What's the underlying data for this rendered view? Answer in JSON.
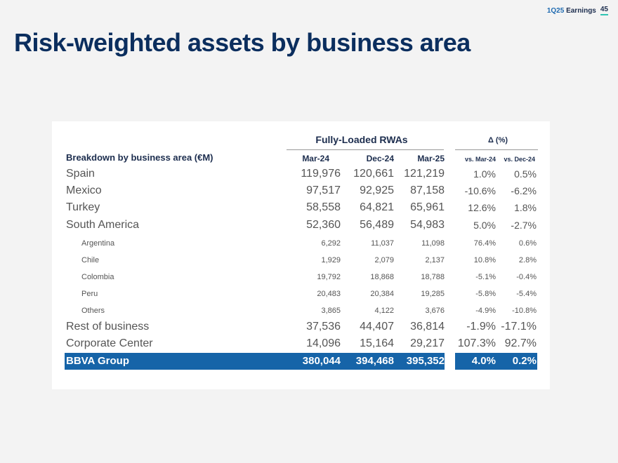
{
  "header": {
    "earnings_prefix": "1Q25",
    "earnings_label": "Earnings",
    "page_number": "45"
  },
  "title": {
    "bold": "Risk-weighted assets",
    "rest": " by business area"
  },
  "table": {
    "group_rwa": "Fully-Loaded RWAs",
    "group_delta": "Δ (%)",
    "row_header": "Breakdown by business area (€M)",
    "columns": [
      "Mar-24",
      "Dec-24",
      "Mar-25"
    ],
    "delta_columns": [
      "vs. Mar-24",
      "vs. Dec-24"
    ],
    "rows": [
      {
        "label": "Spain",
        "values": [
          "119,976",
          "120,661",
          "121,219"
        ],
        "deltas": [
          "1.0%",
          "0.5%"
        ]
      },
      {
        "label": "Mexico",
        "values": [
          "97,517",
          "92,925",
          "87,158"
        ],
        "deltas": [
          "-10.6%",
          "-6.2%"
        ]
      },
      {
        "label": "Turkey",
        "values": [
          "58,558",
          "64,821",
          "65,961"
        ],
        "deltas": [
          "12.6%",
          "1.8%"
        ]
      },
      {
        "label": "South America",
        "values": [
          "52,360",
          "56,489",
          "54,983"
        ],
        "deltas": [
          "5.0%",
          "-2.7%"
        ]
      },
      {
        "label": "Argentina",
        "values": [
          "6,292",
          "11,037",
          "11,098"
        ],
        "deltas": [
          "76.4%",
          "0.6%"
        ]
      },
      {
        "label": "Chile",
        "values": [
          "1,929",
          "2,079",
          "2,137"
        ],
        "deltas": [
          "10.8%",
          "2.8%"
        ]
      },
      {
        "label": "Colombia",
        "values": [
          "19,792",
          "18,868",
          "18,788"
        ],
        "deltas": [
          "-5.1%",
          "-0.4%"
        ]
      },
      {
        "label": "Peru",
        "values": [
          "20,483",
          "20,384",
          "19,285"
        ],
        "deltas": [
          "-5.8%",
          "-5.4%"
        ]
      },
      {
        "label": "Others",
        "values": [
          "3,865",
          "4,122",
          "3,676"
        ],
        "deltas": [
          "-4.9%",
          "-10.8%"
        ]
      },
      {
        "label": "Rest of business",
        "values": [
          "37,536",
          "44,407",
          "36,814"
        ],
        "deltas": [
          "-1.9%",
          "-17.1%"
        ]
      },
      {
        "label": "Corporate Center",
        "values": [
          "14,096",
          "15,164",
          "29,217"
        ],
        "deltas": [
          "107.3%",
          "92.7%"
        ]
      },
      {
        "label": "BBVA Group",
        "values": [
          "380,044",
          "394,468",
          "395,352"
        ],
        "deltas": [
          "4.0%",
          "0.2%"
        ]
      }
    ]
  },
  "colors": {
    "title": "#0b2e5e",
    "total_bar": "#1664a8",
    "accent": "#2fc4b2"
  }
}
